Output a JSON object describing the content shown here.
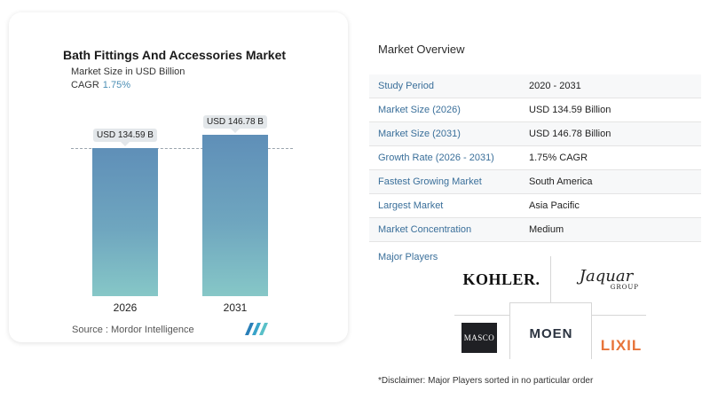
{
  "chart": {
    "title": "Bath Fittings And Accessories Market",
    "subtitle": "Market Size in USD Billion",
    "cagr_label": "CAGR",
    "cagr_value": "1.75%",
    "source": "Source : Mordor Intelligence"
  },
  "chart_data": {
    "type": "bar",
    "title": "Bath Fittings And Accessories Market",
    "categories": [
      "2026",
      "2031"
    ],
    "values": [
      134.59,
      146.78
    ],
    "data_labels": [
      "USD 134.59 B",
      "USD 146.78 B"
    ],
    "xlabel": "",
    "ylabel": "Market Size in USD Billion",
    "ylim": [
      0,
      160
    ],
    "color_top": "#5f8fb8",
    "color_bottom": "#86c7c7"
  },
  "overview": {
    "title": "Market Overview",
    "rows": [
      {
        "key": "Study Period",
        "value": "2020 - 2031"
      },
      {
        "key": "Market Size (2026)",
        "value": "USD 134.59 Billion"
      },
      {
        "key": "Market Size (2031)",
        "value": "USD 146.78 Billion"
      },
      {
        "key": "Growth Rate (2026 - 2031)",
        "value": "1.75% CAGR"
      },
      {
        "key": "Fastest Growing Market",
        "value": "South America"
      },
      {
        "key": "Largest Market",
        "value": "Asia Pacific"
      },
      {
        "key": "Market Concentration",
        "value": "Medium"
      }
    ]
  },
  "players": {
    "label": "Major Players",
    "kohler": "KOHLER.",
    "jaquar": "Jaquar",
    "jaquar_sub": "GROUP",
    "masco": "MASCO",
    "moen": "MOEN",
    "lixil": "LIXIL"
  },
  "disclaimer": "*Disclaimer: Major Players sorted in no particular order",
  "colors": {
    "accent": "#3a6f9a",
    "cagr": "#4c8fb5",
    "lixil": "#e7743a"
  }
}
